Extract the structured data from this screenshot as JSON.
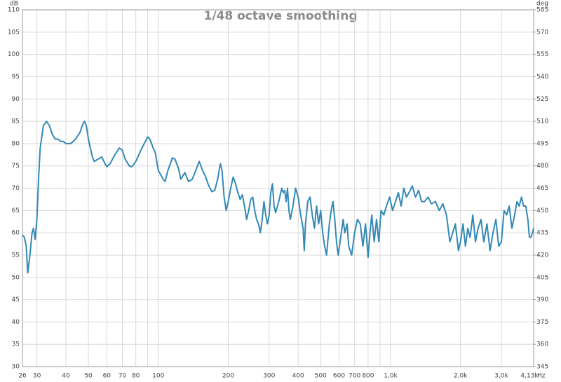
{
  "chart_data": {
    "type": "line",
    "title": "1/48 octave smoothing",
    "ylabel": "dB",
    "y2label": "deg",
    "xlabel": "Hz",
    "log_x": true,
    "grid": true,
    "xlim": [
      26,
      4130
    ],
    "ylim": [
      30,
      110
    ],
    "y2lim": [
      345,
      585
    ],
    "xticks": [
      26,
      30,
      40,
      50,
      60,
      70,
      80,
      100,
      200,
      300,
      400,
      500,
      600,
      700,
      800,
      {
        "value": 1000,
        "label": "1,0k"
      },
      {
        "value": 2000,
        "label": "2,0k"
      },
      {
        "value": 3000,
        "label": "3,0k"
      },
      {
        "value": 4130,
        "label": "4,13k"
      }
    ],
    "xminor": [
      90,
      900
    ],
    "yticks": [
      30,
      35,
      40,
      45,
      50,
      55,
      60,
      65,
      70,
      75,
      80,
      85,
      90,
      95,
      100,
      105,
      110
    ],
    "y2ticks": [
      345,
      360,
      375,
      390,
      405,
      420,
      435,
      450,
      465,
      480,
      495,
      510,
      525,
      540,
      555,
      570,
      585
    ],
    "x": [
      26,
      26.5,
      27,
      27.4,
      28,
      28.6,
      29,
      29.5,
      30,
      30.5,
      31,
      32,
      33,
      34,
      35,
      36,
      37,
      38,
      39,
      40,
      42,
      44,
      46,
      47,
      48,
      49,
      50,
      52,
      53,
      55,
      57,
      59,
      60,
      62,
      65,
      68,
      70,
      72,
      75,
      77,
      80,
      85,
      90,
      92,
      95,
      97,
      100,
      105,
      107,
      110,
      115,
      118,
      122,
      125,
      130,
      135,
      140,
      145,
      150,
      155,
      160,
      165,
      170,
      175,
      180,
      185,
      188,
      192,
      196,
      200,
      205,
      210,
      215,
      220,
      225,
      230,
      235,
      240,
      245,
      250,
      255,
      260,
      265,
      270,
      275,
      280,
      285,
      290,
      295,
      300,
      305,
      310,
      315,
      320,
      330,
      340,
      345,
      350,
      355,
      360,
      365,
      370,
      380,
      390,
      400,
      410,
      420,
      425,
      430,
      440,
      450,
      460,
      470,
      480,
      490,
      500,
      510,
      520,
      530,
      545,
      555,
      565,
      575,
      585,
      595,
      610,
      625,
      635,
      650,
      660,
      680,
      700,
      720,
      740,
      760,
      780,
      800,
      815,
      830,
      850,
      870,
      890,
      910,
      935,
      960,
      990,
      1020,
      1050,
      1080,
      1110,
      1140,
      1170,
      1200,
      1240,
      1280,
      1320,
      1360,
      1400,
      1450,
      1500,
      1560,
      1620,
      1680,
      1740,
      1800,
      1850,
      1900,
      1960,
      2000,
      2050,
      2100,
      2150,
      2200,
      2260,
      2320,
      2380,
      2450,
      2520,
      2600,
      2680,
      2760,
      2840,
      2920,
      3000,
      3080,
      3160,
      3240,
      3330,
      3420,
      3500,
      3580,
      3660,
      3740,
      3820,
      3900,
      3960,
      4020,
      4080,
      4130
    ],
    "series": [
      {
        "color": "#3389b6",
        "values": [
          59.5,
          59,
          57,
          51,
          55,
          60,
          61,
          58.5,
          63,
          72,
          79,
          84,
          85,
          84,
          82,
          81,
          81,
          80.5,
          80.5,
          80,
          80,
          81,
          82.5,
          84,
          85,
          84,
          81,
          77,
          76,
          76.5,
          77,
          75.5,
          74.8,
          75.5,
          77.5,
          79,
          78.5,
          76.5,
          75,
          74.8,
          76,
          79,
          81.5,
          81,
          79,
          78,
          74,
          72,
          71.5,
          74,
          76.8,
          76.5,
          74.5,
          72,
          73.5,
          71.5,
          72,
          74,
          76,
          74,
          72.5,
          70.5,
          69.2,
          69.5,
          72,
          75.5,
          74,
          68,
          65,
          67,
          70,
          72.5,
          71,
          69,
          67.5,
          68.5,
          66,
          63,
          65,
          67.5,
          68,
          65,
          63,
          62,
          60,
          63,
          67,
          64,
          62,
          64,
          69,
          71,
          66,
          64.5,
          67,
          70,
          69,
          69.5,
          67,
          70,
          65,
          63,
          66,
          70,
          68,
          64,
          61,
          56,
          62,
          67,
          68,
          64,
          61,
          66,
          62,
          65,
          60,
          57,
          55,
          62,
          65,
          67,
          63,
          58,
          55,
          59,
          63,
          60,
          62,
          57,
          55,
          60,
          63,
          62,
          57,
          62,
          54.5,
          60,
          64,
          58,
          63,
          58,
          65,
          64,
          66,
          68,
          65,
          67,
          69,
          66,
          70,
          68,
          69,
          70.5,
          68,
          69.5,
          67,
          67,
          68,
          66.5,
          67,
          65,
          66.5,
          64,
          58,
          60,
          62,
          56,
          58,
          62,
          57,
          61,
          59,
          64,
          58,
          61,
          63,
          58,
          62,
          56,
          60,
          63,
          57,
          58,
          65,
          64,
          66,
          61,
          64,
          67,
          66,
          68,
          66,
          66,
          63,
          59,
          59,
          60,
          61
        ]
      }
    ]
  }
}
